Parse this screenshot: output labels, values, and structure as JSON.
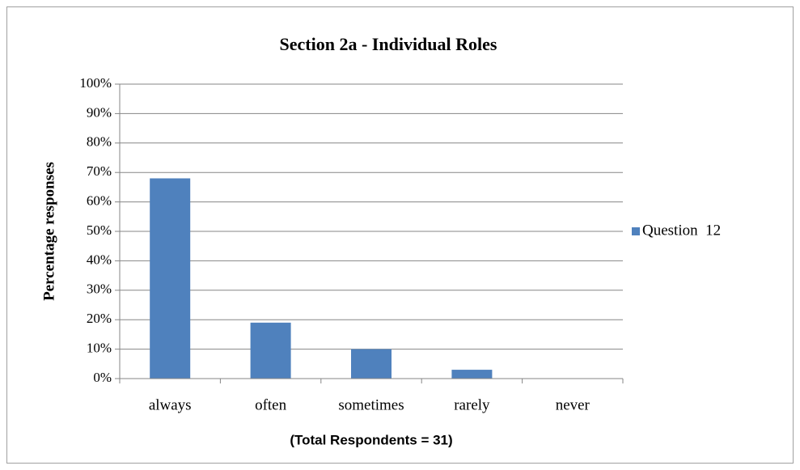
{
  "chart_data": {
    "type": "bar",
    "title": "Section 2a - Individual Roles",
    "y_axis_label": "Percentage responses",
    "x_axis_label": "(Total Respondents = 31)",
    "categories": [
      "always",
      "often",
      "sometimes",
      "rarely",
      "never"
    ],
    "series": [
      {
        "name": "Question  12",
        "color": "#4f81bd",
        "values": [
          68,
          19,
          10,
          3,
          0
        ]
      }
    ],
    "ylim": [
      0,
      100
    ],
    "yticks": [
      {
        "value": 0,
        "label": "0%"
      },
      {
        "value": 10,
        "label": "10%"
      },
      {
        "value": 20,
        "label": "20%"
      },
      {
        "value": 30,
        "label": "30%"
      },
      {
        "value": 40,
        "label": "40%"
      },
      {
        "value": 50,
        "label": "50%"
      },
      {
        "value": 60,
        "label": "60%"
      },
      {
        "value": 70,
        "label": "70%"
      },
      {
        "value": 80,
        "label": "80%"
      },
      {
        "value": 90,
        "label": "90%"
      },
      {
        "value": 100,
        "label": "100%"
      }
    ],
    "grid": true,
    "legend": "right"
  }
}
